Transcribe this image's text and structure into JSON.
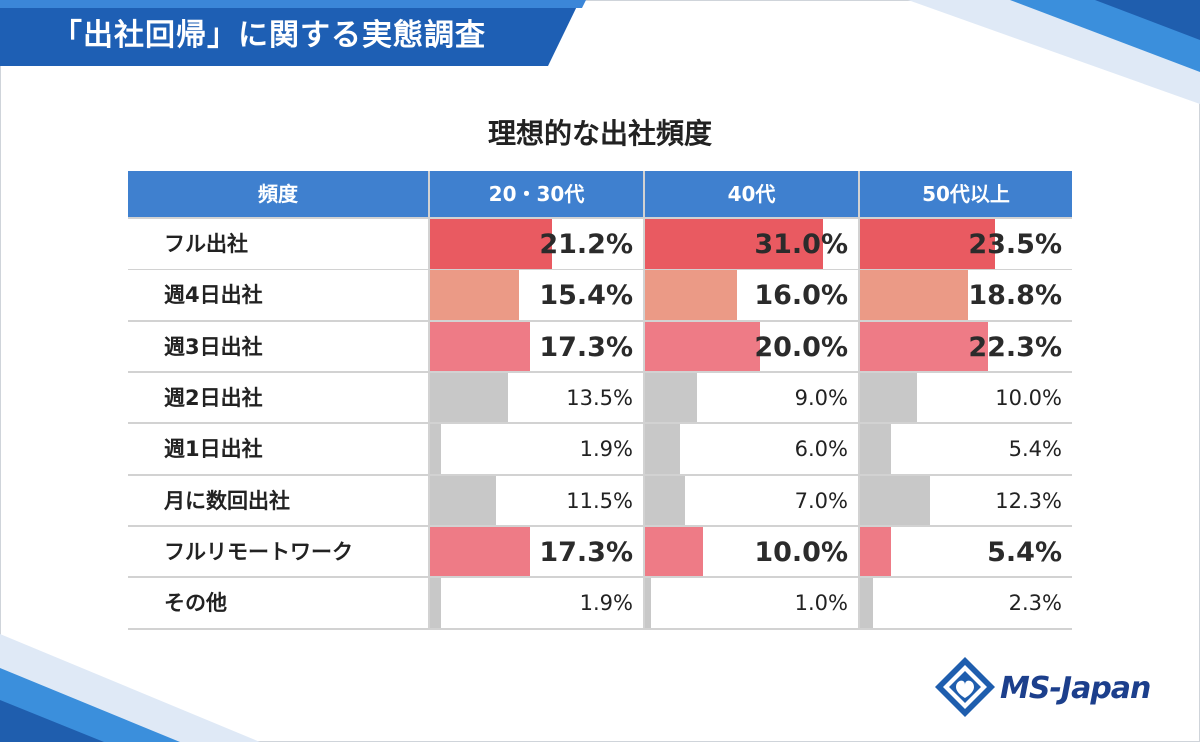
{
  "header": {
    "title": "「出社回帰」に関する実態調査"
  },
  "chart_data": {
    "type": "table",
    "title": "理想的な出社頻度",
    "row_header": "頻度",
    "columns": [
      "20・30代",
      "40代",
      "50代以上"
    ],
    "rows": [
      {
        "label": "フル出社",
        "values": [
          21.2,
          31.0,
          23.5
        ],
        "labels": [
          "21.2%",
          "31.0%",
          "23.5%"
        ]
      },
      {
        "label": "週4日出社",
        "values": [
          15.4,
          16.0,
          18.8
        ],
        "labels": [
          "15.4%",
          "16.0%",
          "18.8%"
        ]
      },
      {
        "label": "週3日出社",
        "values": [
          17.3,
          20.0,
          22.3
        ],
        "labels": [
          "17.3%",
          "20.0%",
          "22.3%"
        ]
      },
      {
        "label": "週2日出社",
        "values": [
          13.5,
          9.0,
          10.0
        ],
        "labels": [
          "13.5%",
          "9.0%",
          "10.0%"
        ]
      },
      {
        "label": "週1日出社",
        "values": [
          1.9,
          6.0,
          5.4
        ],
        "labels": [
          "1.9%",
          "6.0%",
          "5.4%"
        ]
      },
      {
        "label": "月に数回出社",
        "values": [
          11.5,
          7.0,
          12.3
        ],
        "labels": [
          "11.5%",
          "7.0%",
          "12.3%"
        ]
      },
      {
        "label": "フルリモートワーク",
        "values": [
          17.3,
          10.0,
          5.4
        ],
        "labels": [
          "17.3%",
          "10.0%",
          "5.4%"
        ]
      },
      {
        "label": "その他",
        "values": [
          1.9,
          1.0,
          2.3
        ],
        "labels": [
          "1.9%",
          "1.0%",
          "2.3%"
        ]
      }
    ],
    "bar_scale_max": 37,
    "highlight_colors": {
      "フル出社": "#e95a61",
      "週4日出社": "#eb9a86",
      "週3日出社": "#ee7b86",
      "フルリモートワーク": "#ee7b86"
    },
    "default_bar_color": "#c8c8c8"
  },
  "brand": {
    "name": "MS-Japan"
  }
}
